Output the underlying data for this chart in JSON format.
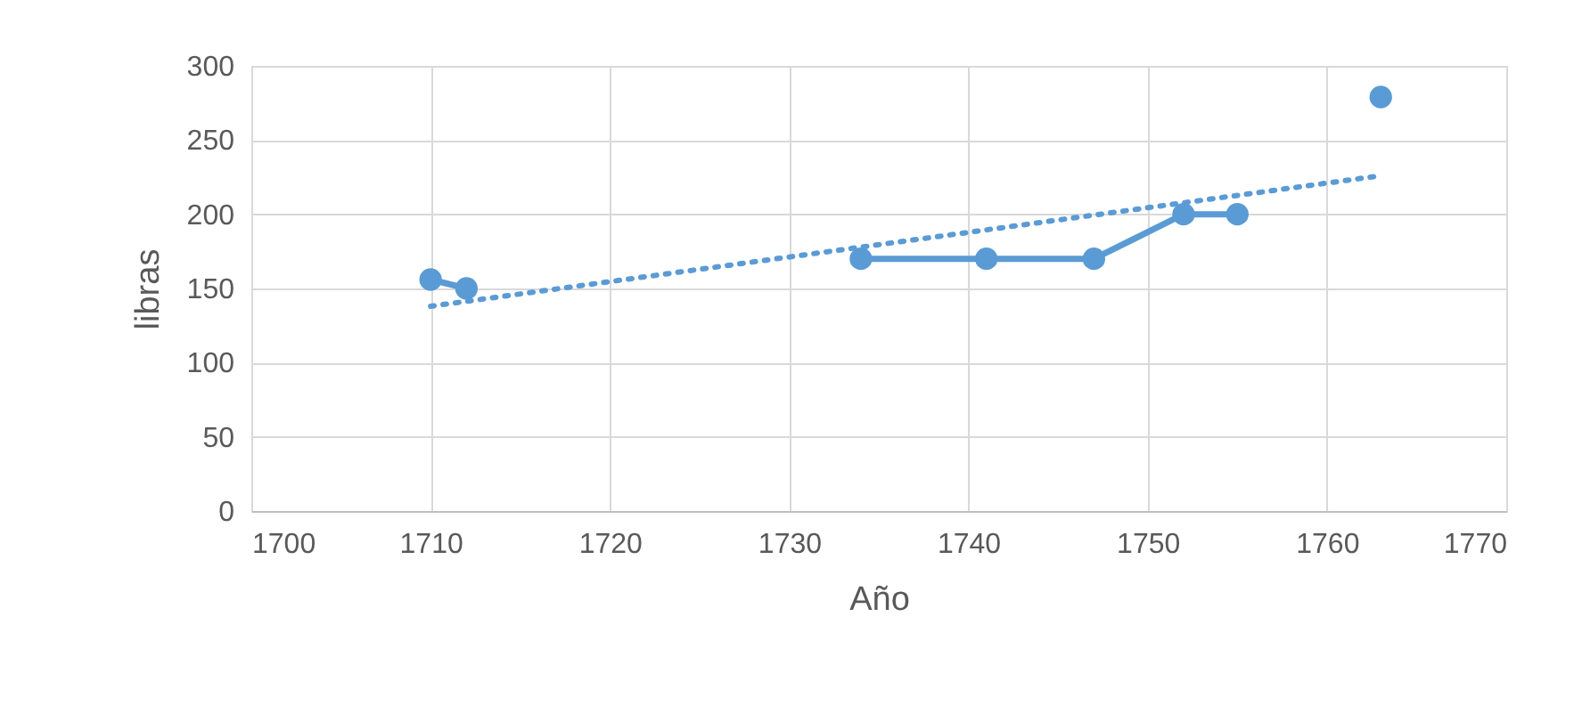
{
  "chart_data": {
    "type": "line",
    "xlabel": "Año",
    "ylabel": "libras",
    "xlim": [
      1700,
      1770
    ],
    "xticks": [
      1700,
      1710,
      1720,
      1730,
      1740,
      1750,
      1760,
      1770
    ],
    "ylim": [
      0,
      300
    ],
    "yticks": [
      0,
      50,
      100,
      150,
      200,
      250,
      300
    ],
    "grid": true,
    "legend": false,
    "series": [
      {
        "type": "line",
        "color": "#5b9bd5",
        "marker": "circle",
        "line_style": "solid",
        "x": [
          1710,
          1712,
          1723,
          1734,
          1741,
          1747,
          1752,
          1755,
          1759,
          1763
        ],
        "values": [
          156,
          150,
          null,
          170,
          170,
          170,
          200,
          200,
          null,
          279
        ]
      },
      {
        "type": "line",
        "color": "#5b9bd5",
        "marker": "none",
        "line_style": "dotted",
        "x": [
          1710,
          1763
        ],
        "values": [
          138,
          226
        ]
      }
    ]
  }
}
